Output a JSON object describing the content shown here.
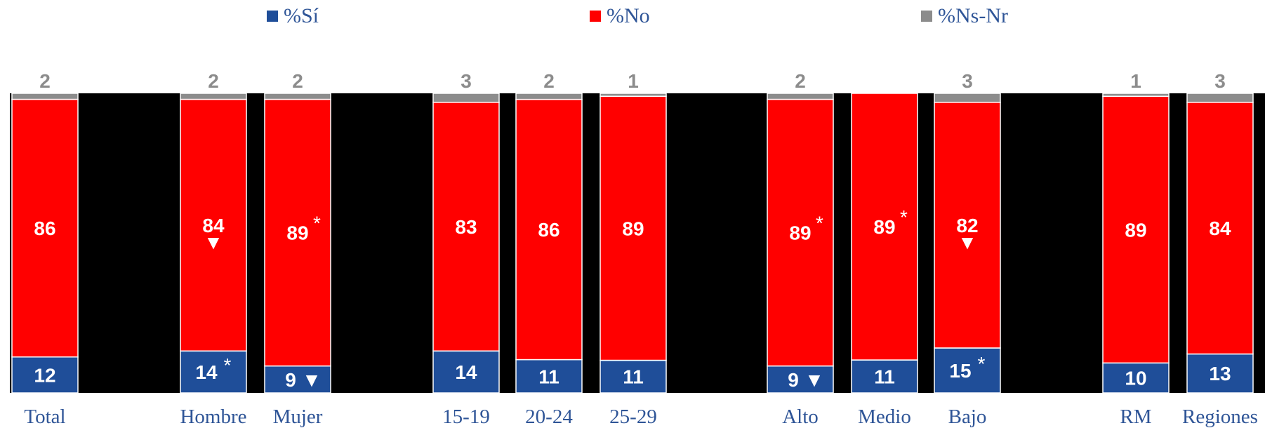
{
  "chart_data": {
    "type": "bar",
    "stacked": true,
    "ylim": [
      0,
      100
    ],
    "colors": {
      "background": "#000000",
      "si": "#1F4E99",
      "no": "#FF0000",
      "nsnr": "#8C8C8C",
      "category_text": "#2F5597",
      "legend_text": "#2F5597"
    },
    "legend": [
      {
        "key": "si",
        "label": "%Sí"
      },
      {
        "key": "no",
        "label": "%No"
      },
      {
        "key": "nsnr",
        "label": "%Ns-Nr"
      }
    ],
    "legend_position": "top",
    "categories": [
      "Total",
      "Hombre",
      "Mujer",
      "15-19",
      "20-24",
      "25-29",
      "Alto",
      "Medio",
      "Bajo",
      "RM",
      "Regiones"
    ],
    "series": [
      {
        "key": "si",
        "name": "%Sí",
        "values": [
          12,
          14,
          9,
          14,
          11,
          11,
          9,
          11,
          15,
          10,
          13
        ]
      },
      {
        "key": "no",
        "name": "%No",
        "values": [
          86,
          84,
          89,
          83,
          86,
          89,
          89,
          89,
          82,
          89,
          84
        ]
      },
      {
        "key": "nsnr",
        "name": "%Ns-Nr",
        "values": [
          2,
          2,
          2,
          3,
          2,
          1,
          2,
          0,
          3,
          1,
          3
        ]
      }
    ],
    "top_labels": [
      "2",
      "2",
      "2",
      "3",
      "2",
      "1",
      "2",
      "",
      "3",
      "1",
      "3"
    ],
    "si_marks": [
      "",
      "*",
      "▼",
      "",
      "",
      "",
      "▼",
      "",
      "*",
      "",
      ""
    ],
    "no_marks": [
      "",
      "▼",
      "*",
      "",
      "",
      "",
      "*",
      "*",
      "▼",
      "",
      ""
    ]
  }
}
